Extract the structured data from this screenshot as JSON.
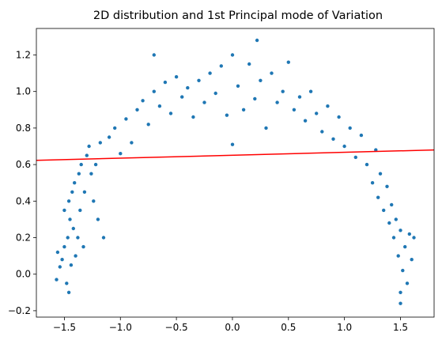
{
  "chart_data": {
    "type": "scatter",
    "title": "2D distribution and 1st Principal mode of Variation",
    "xlabel": "",
    "ylabel": "",
    "xlim": [
      -1.75,
      1.8
    ],
    "ylim": [
      -0.235,
      1.345
    ],
    "xticks": [
      -1.5,
      -1.0,
      -0.5,
      0.0,
      0.5,
      1.0,
      1.5
    ],
    "xtick_labels": [
      "−1.5",
      "−1.0",
      "−0.5",
      "0.0",
      "0.5",
      "1.0",
      "1.5"
    ],
    "yticks": [
      -0.2,
      0.0,
      0.2,
      0.4,
      0.6,
      0.8,
      1.0,
      1.2
    ],
    "ytick_labels": [
      "−0.2",
      "0.0",
      "0.2",
      "0.4",
      "0.6",
      "0.8",
      "1.0",
      "1.2"
    ],
    "grid": false,
    "series": [
      {
        "type": "scatter",
        "color": "#1f77b4",
        "points": [
          [
            -1.56,
            0.12
          ],
          [
            -1.54,
            0.04
          ],
          [
            -1.57,
            -0.03
          ],
          [
            -1.52,
            0.08
          ],
          [
            -1.5,
            0.15
          ],
          [
            -1.48,
            -0.05
          ],
          [
            -1.46,
            -0.1
          ],
          [
            -1.47,
            0.2
          ],
          [
            -1.44,
            0.05
          ],
          [
            -1.42,
            0.25
          ],
          [
            -1.45,
            0.3
          ],
          [
            -1.5,
            0.35
          ],
          [
            -1.46,
            0.4
          ],
          [
            -1.43,
            0.45
          ],
          [
            -1.4,
            0.1
          ],
          [
            -1.38,
            0.2
          ],
          [
            -1.41,
            0.5
          ],
          [
            -1.37,
            0.55
          ],
          [
            -1.35,
            0.6
          ],
          [
            -1.33,
            0.15
          ],
          [
            -1.36,
            0.35
          ],
          [
            -1.32,
            0.45
          ],
          [
            -1.3,
            0.65
          ],
          [
            -1.28,
            0.7
          ],
          [
            -1.26,
            0.55
          ],
          [
            -1.24,
            0.4
          ],
          [
            -1.22,
            0.6
          ],
          [
            -1.2,
            0.3
          ],
          [
            -1.18,
            0.72
          ],
          [
            -1.15,
            0.2
          ],
          [
            -1.1,
            0.75
          ],
          [
            -1.05,
            0.8
          ],
          [
            -1.0,
            0.66
          ],
          [
            -0.95,
            0.85
          ],
          [
            -0.9,
            0.72
          ],
          [
            -0.85,
            0.9
          ],
          [
            -0.8,
            0.95
          ],
          [
            -0.75,
            0.82
          ],
          [
            -0.7,
            1.0
          ],
          [
            -0.7,
            1.2
          ],
          [
            -0.65,
            0.92
          ],
          [
            -0.6,
            1.05
          ],
          [
            -0.55,
            0.88
          ],
          [
            -0.5,
            1.08
          ],
          [
            -0.45,
            0.97
          ],
          [
            -0.4,
            1.02
          ],
          [
            -0.35,
            0.86
          ],
          [
            -0.3,
            1.06
          ],
          [
            -0.25,
            0.94
          ],
          [
            -0.2,
            1.1
          ],
          [
            -0.15,
            0.99
          ],
          [
            -0.1,
            1.14
          ],
          [
            -0.05,
            0.87
          ],
          [
            0.0,
            1.2
          ],
          [
            0.0,
            0.71
          ],
          [
            0.05,
            1.03
          ],
          [
            0.1,
            0.9
          ],
          [
            0.15,
            1.15
          ],
          [
            0.2,
            0.96
          ],
          [
            0.22,
            1.28
          ],
          [
            0.25,
            1.06
          ],
          [
            0.3,
            0.8
          ],
          [
            0.35,
            1.1
          ],
          [
            0.4,
            0.94
          ],
          [
            0.45,
            1.0
          ],
          [
            0.5,
            1.16
          ],
          [
            0.55,
            0.9
          ],
          [
            0.6,
            0.97
          ],
          [
            0.65,
            0.84
          ],
          [
            0.7,
            1.0
          ],
          [
            0.75,
            0.88
          ],
          [
            0.8,
            0.78
          ],
          [
            0.85,
            0.92
          ],
          [
            0.9,
            0.74
          ],
          [
            0.95,
            0.86
          ],
          [
            1.0,
            0.7
          ],
          [
            1.05,
            0.8
          ],
          [
            1.1,
            0.64
          ],
          [
            1.15,
            0.76
          ],
          [
            1.2,
            0.6
          ],
          [
            1.25,
            0.5
          ],
          [
            1.28,
            0.68
          ],
          [
            1.3,
            0.42
          ],
          [
            1.32,
            0.55
          ],
          [
            1.35,
            0.35
          ],
          [
            1.38,
            0.48
          ],
          [
            1.4,
            0.28
          ],
          [
            1.42,
            0.38
          ],
          [
            1.44,
            0.2
          ],
          [
            1.46,
            0.3
          ],
          [
            1.48,
            0.1
          ],
          [
            1.5,
            0.24
          ],
          [
            1.52,
            0.02
          ],
          [
            1.5,
            -0.1
          ],
          [
            1.54,
            0.15
          ],
          [
            1.56,
            -0.05
          ],
          [
            1.58,
            0.22
          ],
          [
            1.6,
            0.08
          ],
          [
            1.62,
            0.2
          ],
          [
            1.5,
            -0.16
          ]
        ]
      }
    ],
    "line": {
      "color": "#ff0000",
      "points": [
        [
          -1.75,
          0.623
        ],
        [
          1.8,
          0.68
        ]
      ]
    }
  }
}
